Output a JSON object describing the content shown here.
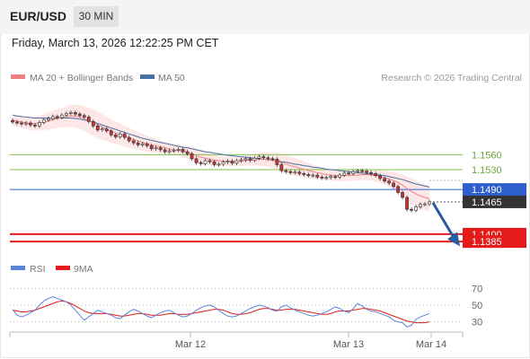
{
  "header": {
    "symbol": "EUR/USD",
    "timeframe": "30 MIN",
    "datetime": "Friday, March 13, 2026 12:22:25 PM CET",
    "copyright": "Research © 2026 Trading Central"
  },
  "colors": {
    "bollinger": "#f08080",
    "ma50": "#4a6fa5",
    "target_lines": "#7cc34a",
    "pivot": "#2f5fcf",
    "support": "#e31b1b",
    "current_price_box": "#333333",
    "rsi": "#5b84d8",
    "rsi_ma": "#e31b1b",
    "arrow": "#2a5b9e"
  },
  "chart_data": [
    {
      "type": "candlestick",
      "legend": [
        {
          "name": "MA 20 + Bollinger Bands",
          "color": "#f08080"
        },
        {
          "name": "MA 50",
          "color": "#4a6fa5"
        }
      ],
      "x_tick_labels": [
        "Mar 12",
        "Mar 13",
        "Mar 14"
      ],
      "ylim": [
        1.136,
        1.17
      ],
      "levels": [
        {
          "name": "resistance-2",
          "value": 1.156,
          "label": "1.1560",
          "style": "green"
        },
        {
          "name": "resistance-1",
          "value": 1.153,
          "label": "1.1530",
          "style": "green"
        },
        {
          "name": "pivot",
          "value": 1.149,
          "label": "1.1490",
          "style": "pivot"
        },
        {
          "name": "support-1",
          "value": 1.14,
          "label": "1.1400",
          "style": "support"
        },
        {
          "name": "support-2",
          "value": 1.1385,
          "label": "1.1385",
          "style": "support"
        }
      ],
      "current_price": 1.1465,
      "current_price_label": "1.1465",
      "expected_move": {
        "from": 1.1465,
        "to": 1.139,
        "direction": "down"
      },
      "close": [
        1.1626,
        1.1624,
        1.1622,
        1.1624,
        1.162,
        1.1618,
        1.1625,
        1.163,
        1.1633,
        1.1637,
        1.1635,
        1.164,
        1.1643,
        1.1645,
        1.1642,
        1.1639,
        1.1636,
        1.1627,
        1.1618,
        1.161,
        1.1612,
        1.1608,
        1.16,
        1.1596,
        1.1602,
        1.1595,
        1.1588,
        1.1584,
        1.158,
        1.1582,
        1.1578,
        1.1572,
        1.1574,
        1.157,
        1.1566,
        1.1568,
        1.1569,
        1.1571,
        1.1566,
        1.1562,
        1.1552,
        1.1544,
        1.1542,
        1.1548,
        1.1546,
        1.154,
        1.1541,
        1.1545,
        1.1547,
        1.1543,
        1.1548,
        1.155,
        1.1552,
        1.1549,
        1.1553,
        1.1556,
        1.1554,
        1.1552,
        1.1551,
        1.154,
        1.1528,
        1.1526,
        1.1524,
        1.1525,
        1.1522,
        1.152,
        1.1518,
        1.1519,
        1.1515,
        1.1513,
        1.1514,
        1.1516,
        1.1515,
        1.1519,
        1.1523,
        1.1522,
        1.1526,
        1.1528,
        1.1527,
        1.1524,
        1.1522,
        1.1518,
        1.1512,
        1.1507,
        1.1503,
        1.1496,
        1.1484,
        1.1474,
        1.145,
        1.1448,
        1.1455,
        1.146,
        1.1461,
        1.1465
      ],
      "ma20": [
        1.163,
        1.1628,
        1.1626,
        1.1624,
        1.1623,
        1.1623,
        1.1624,
        1.1626,
        1.1628,
        1.1631,
        1.1633,
        1.1635,
        1.1637,
        1.1638,
        1.1638,
        1.1636,
        1.1633,
        1.1629,
        1.1625,
        1.162,
        1.1616,
        1.1612,
        1.1608,
        1.1604,
        1.1601,
        1.1597,
        1.1594,
        1.1591,
        1.1588,
        1.1585,
        1.1582,
        1.158,
        1.1578,
        1.1576,
        1.1574,
        1.1572,
        1.157,
        1.1569,
        1.1567,
        1.1565,
        1.1562,
        1.1558,
        1.1555,
        1.1553,
        1.1551,
        1.1549,
        1.1548,
        1.1547,
        1.1547,
        1.1546,
        1.1546,
        1.1547,
        1.1548,
        1.1549,
        1.155,
        1.1551,
        1.1551,
        1.155,
        1.1549,
        1.1547,
        1.1544,
        1.1541,
        1.1538,
        1.1536,
        1.1533,
        1.1531,
        1.1528,
        1.1526,
        1.1524,
        1.1522,
        1.152,
        1.1519,
        1.1518,
        1.1518,
        1.1518,
        1.1518,
        1.1519,
        1.1519,
        1.152,
        1.152,
        1.1519,
        1.1518,
        1.1516,
        1.1514,
        1.1511,
        1.1508,
        1.1504,
        1.1499,
        1.1492,
        1.1486,
        1.1481,
        1.1477,
        1.1474,
        1.1471
      ],
      "bb_width": [
        0.0012,
        0.0012,
        0.0012,
        0.0012,
        0.0013,
        0.0014,
        0.0015,
        0.0016,
        0.0017,
        0.0018,
        0.0019,
        0.002,
        0.0021,
        0.0022,
        0.0023,
        0.0024,
        0.0025,
        0.0026,
        0.0027,
        0.0027,
        0.0026,
        0.0025,
        0.0024,
        0.0023,
        0.0022,
        0.0021,
        0.002,
        0.0019,
        0.0018,
        0.0017,
        0.0016,
        0.0015,
        0.0014,
        0.0013,
        0.0012,
        0.0011,
        0.0011,
        0.0011,
        0.0012,
        0.0013,
        0.0014,
        0.0014,
        0.0014,
        0.0013,
        0.0012,
        0.0011,
        0.001,
        0.001,
        0.001,
        0.001,
        0.001,
        0.001,
        0.001,
        0.0011,
        0.0012,
        0.0013,
        0.0014,
        0.0015,
        0.0016,
        0.0017,
        0.0018,
        0.0019,
        0.0019,
        0.0018,
        0.0017,
        0.0016,
        0.0015,
        0.0014,
        0.0013,
        0.0012,
        0.0011,
        0.0011,
        0.0011,
        0.0011,
        0.0011,
        0.0011,
        0.0011,
        0.0011,
        0.0011,
        0.0011,
        0.0011,
        0.0012,
        0.0013,
        0.0014,
        0.0015,
        0.0017,
        0.0019,
        0.0021,
        0.0024,
        0.0026,
        0.0027,
        0.0027,
        0.0026,
        0.0025
      ],
      "ma50": [
        1.164,
        1.1638,
        1.1637,
        1.1636,
        1.1635,
        1.1634,
        1.1634,
        1.1634,
        1.1634,
        1.1634,
        1.1634,
        1.1634,
        1.1634,
        1.1634,
        1.1633,
        1.1632,
        1.163,
        1.1628,
        1.1626,
        1.1623,
        1.162,
        1.1617,
        1.1614,
        1.1611,
        1.1608,
        1.1605,
        1.1602,
        1.1599,
        1.1596,
        1.1593,
        1.1591,
        1.1589,
        1.1587,
        1.1585,
        1.1583,
        1.1581,
        1.1579,
        1.1577,
        1.1575,
        1.1574,
        1.1572,
        1.157,
        1.1568,
        1.1566,
        1.1565,
        1.1563,
        1.1562,
        1.156,
        1.1559,
        1.1558,
        1.1557,
        1.1556,
        1.1555,
        1.1554,
        1.1553,
        1.1552,
        1.1551,
        1.155,
        1.1549,
        1.1548,
        1.1546,
        1.1545,
        1.1543,
        1.1541,
        1.154,
        1.1538,
        1.1537,
        1.1535,
        1.1534,
        1.1533,
        1.1531,
        1.153,
        1.1529,
        1.1528,
        1.1527,
        1.1526,
        1.1525,
        1.1524,
        1.1523,
        1.1522,
        1.1521,
        1.152,
        1.1519,
        1.1518,
        1.1516,
        1.1514,
        1.1512,
        1.151,
        1.1507,
        1.1504,
        1.1501,
        1.1499,
        1.1497,
        1.1495
      ]
    },
    {
      "type": "line",
      "legend": [
        {
          "name": "RSI",
          "color": "#5b84d8"
        },
        {
          "name": "9MA",
          "color": "#e31b1b"
        }
      ],
      "ylim": [
        20,
        80
      ],
      "levels": [
        70,
        50,
        30
      ],
      "level_labels": [
        "70",
        "50",
        "30"
      ],
      "series": [
        {
          "name": "RSI",
          "values": [
            45,
            38,
            36,
            38,
            41,
            44,
            50,
            55,
            58,
            60,
            58,
            56,
            54,
            50,
            44,
            38,
            32,
            36,
            40,
            44,
            42,
            40,
            38,
            35,
            34,
            38,
            42,
            45,
            43,
            40,
            37,
            35,
            38,
            41,
            43,
            44,
            41,
            38,
            36,
            37,
            40,
            44,
            47,
            49,
            50,
            48,
            44,
            40,
            37,
            36,
            37,
            40,
            43,
            46,
            48,
            50,
            49,
            47,
            44,
            43,
            48,
            50,
            47,
            44,
            42,
            40,
            38,
            37,
            38,
            40,
            42,
            45,
            48,
            46,
            43,
            41,
            46,
            52,
            49,
            45,
            43,
            42,
            40,
            38,
            36,
            32,
            30,
            29,
            24,
            26,
            33,
            36,
            38,
            40
          ]
        },
        {
          "name": "9MA",
          "values": [
            44,
            43,
            42,
            42,
            43,
            44,
            46,
            48,
            50,
            52,
            54,
            55,
            54,
            52,
            49,
            46,
            43,
            41,
            40,
            40,
            40,
            40,
            39,
            38,
            37,
            37,
            38,
            39,
            40,
            40,
            39,
            38,
            38,
            38,
            39,
            40,
            40,
            39,
            39,
            39,
            40,
            41,
            42,
            43,
            44,
            45,
            45,
            44,
            42,
            40,
            39,
            39,
            40,
            41,
            43,
            45,
            46,
            46,
            45,
            44,
            44,
            45,
            45,
            45,
            44,
            43,
            42,
            41,
            40,
            39,
            39,
            40,
            42,
            43,
            43,
            43,
            44,
            45,
            46,
            46,
            45,
            44,
            43,
            41,
            39,
            37,
            35,
            33,
            31,
            30,
            29,
            29,
            29,
            30
          ]
        }
      ]
    }
  ]
}
